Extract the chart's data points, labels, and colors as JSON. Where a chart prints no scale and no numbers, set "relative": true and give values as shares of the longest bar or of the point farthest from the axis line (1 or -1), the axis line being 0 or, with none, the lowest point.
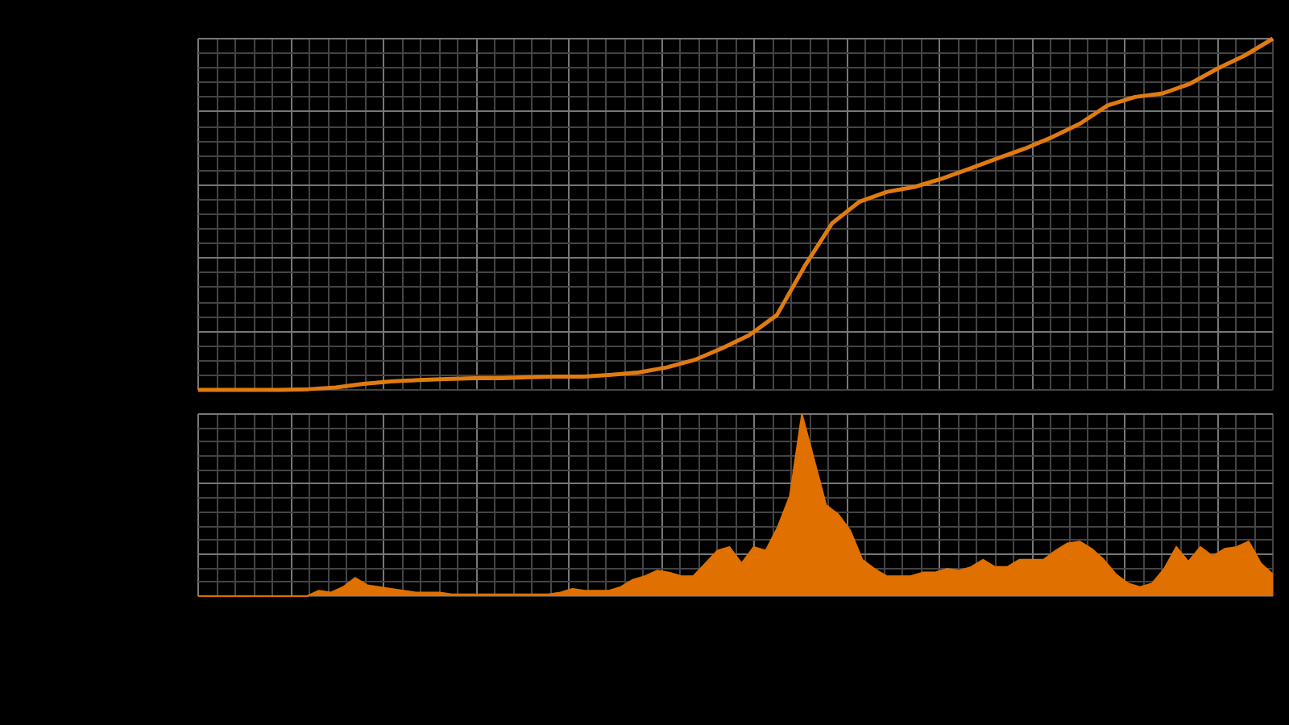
{
  "chart_data": [
    {
      "type": "line",
      "relative": true,
      "grid": true,
      "legend": false,
      "tick_labels": false,
      "marker": "none",
      "categories": [
        null,
        null,
        null,
        null,
        null,
        null,
        null,
        null,
        null,
        null,
        null,
        null,
        null,
        null,
        null,
        null,
        null,
        null,
        null,
        null,
        null,
        null,
        null,
        null,
        null,
        null,
        null,
        null,
        null,
        null,
        null,
        null,
        null,
        null,
        null,
        null,
        null,
        null,
        null,
        null
      ],
      "series": [
        {
          "color": "#e07b10",
          "values": [
            0,
            0,
            0,
            0,
            0.002,
            0.007,
            0.017,
            0.024,
            0.028,
            0.031,
            0.033,
            0.033,
            0.036,
            0.038,
            0.038,
            0.043,
            0.05,
            0.064,
            0.085,
            0.118,
            0.156,
            0.213,
            0.351,
            0.474,
            0.536,
            0.564,
            0.578,
            0.602,
            0.63,
            0.659,
            0.687,
            0.72,
            0.758,
            0.81,
            0.834,
            0.844,
            0.872,
            0.915,
            0.953,
            1
          ]
        }
      ]
    },
    {
      "type": "area",
      "relative": true,
      "grid": true,
      "legend": false,
      "tick_labels": false,
      "marker": "none",
      "categories": [
        null,
        null,
        null,
        null,
        null,
        null,
        null,
        null,
        null,
        null,
        null,
        null,
        null,
        null,
        null,
        null,
        null,
        null,
        null,
        null,
        null,
        null,
        null,
        null,
        null,
        null,
        null,
        null,
        null,
        null,
        null,
        null,
        null,
        null,
        null,
        null,
        null,
        null,
        null,
        null,
        null,
        null,
        null,
        null,
        null,
        null,
        null,
        null,
        null,
        null,
        null,
        null,
        null,
        null,
        null,
        null,
        null,
        null,
        null,
        null,
        null,
        null,
        null,
        null,
        null,
        null,
        null,
        null,
        null,
        null,
        null,
        null,
        null,
        null,
        null,
        null,
        null,
        null,
        null,
        null,
        null,
        null,
        null,
        null,
        null,
        null,
        null,
        null,
        null,
        null
      ],
      "series": [
        {
          "color": "#e07000",
          "values": [
            0,
            0,
            0,
            0,
            0,
            0,
            0,
            0,
            0,
            0,
            0.03,
            0.02,
            0.05,
            0.1,
            0.06,
            0.05,
            0.04,
            0.03,
            0.02,
            0.02,
            0.02,
            0.01,
            0.01,
            0.01,
            0.01,
            0.01,
            0.01,
            0.01,
            0.01,
            0.01,
            0.02,
            0.04,
            0.03,
            0.03,
            0.03,
            0.05,
            0.09,
            0.11,
            0.14,
            0.13,
            0.11,
            0.11,
            0.18,
            0.25,
            0.27,
            0.18,
            0.27,
            0.25,
            0.38,
            0.55,
            1,
            0.75,
            0.5,
            0.45,
            0.36,
            0.2,
            0.15,
            0.11,
            0.11,
            0.11,
            0.13,
            0.13,
            0.15,
            0.14,
            0.16,
            0.2,
            0.16,
            0.16,
            0.2,
            0.2,
            0.2,
            0.25,
            0.29,
            0.3,
            0.26,
            0.2,
            0.12,
            0.07,
            0.05,
            0.07,
            0.15,
            0.27,
            0.19,
            0.27,
            0.22,
            0.26,
            0.27,
            0.3,
            0.18,
            0.12
          ]
        }
      ]
    }
  ]
}
